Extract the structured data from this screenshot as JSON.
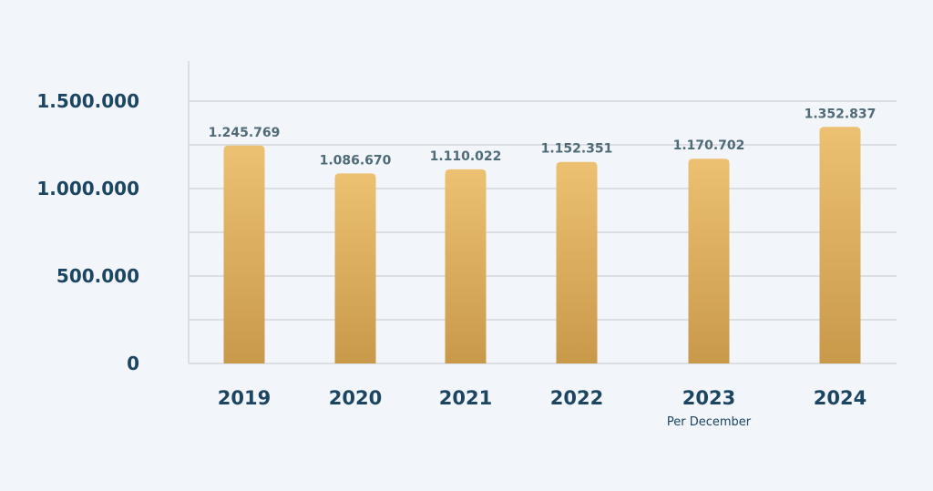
{
  "chart_data": {
    "type": "bar",
    "title": "",
    "xlabel": "",
    "ylabel": "",
    "categories": [
      "2019",
      "2020",
      "2021",
      "2022",
      "2023",
      "2024"
    ],
    "category_notes": [
      "",
      "",
      "",
      "",
      "Per December",
      ""
    ],
    "values": [
      1245769,
      1086670,
      1110022,
      1152351,
      1170702,
      1352837
    ],
    "data_labels": [
      "1.245.769",
      "1.086.670",
      "1.110.022",
      "1.152.351",
      "1.170.702",
      "1.352.837"
    ],
    "ylim": [
      0,
      1500000
    ],
    "yticks": [
      0,
      500000,
      1000000,
      1500000
    ],
    "ytick_labels": [
      "0",
      "500.000",
      "1.000.000",
      "1.500.000"
    ],
    "grid": true,
    "grid_step": 250000,
    "colors": {
      "bar_top": "#ecc172",
      "bar_bottom": "#c9994a",
      "text": "#1c4562",
      "data_label": "#4f6b78",
      "grid": "#d3d6db",
      "background": "#f2f5fa"
    }
  }
}
